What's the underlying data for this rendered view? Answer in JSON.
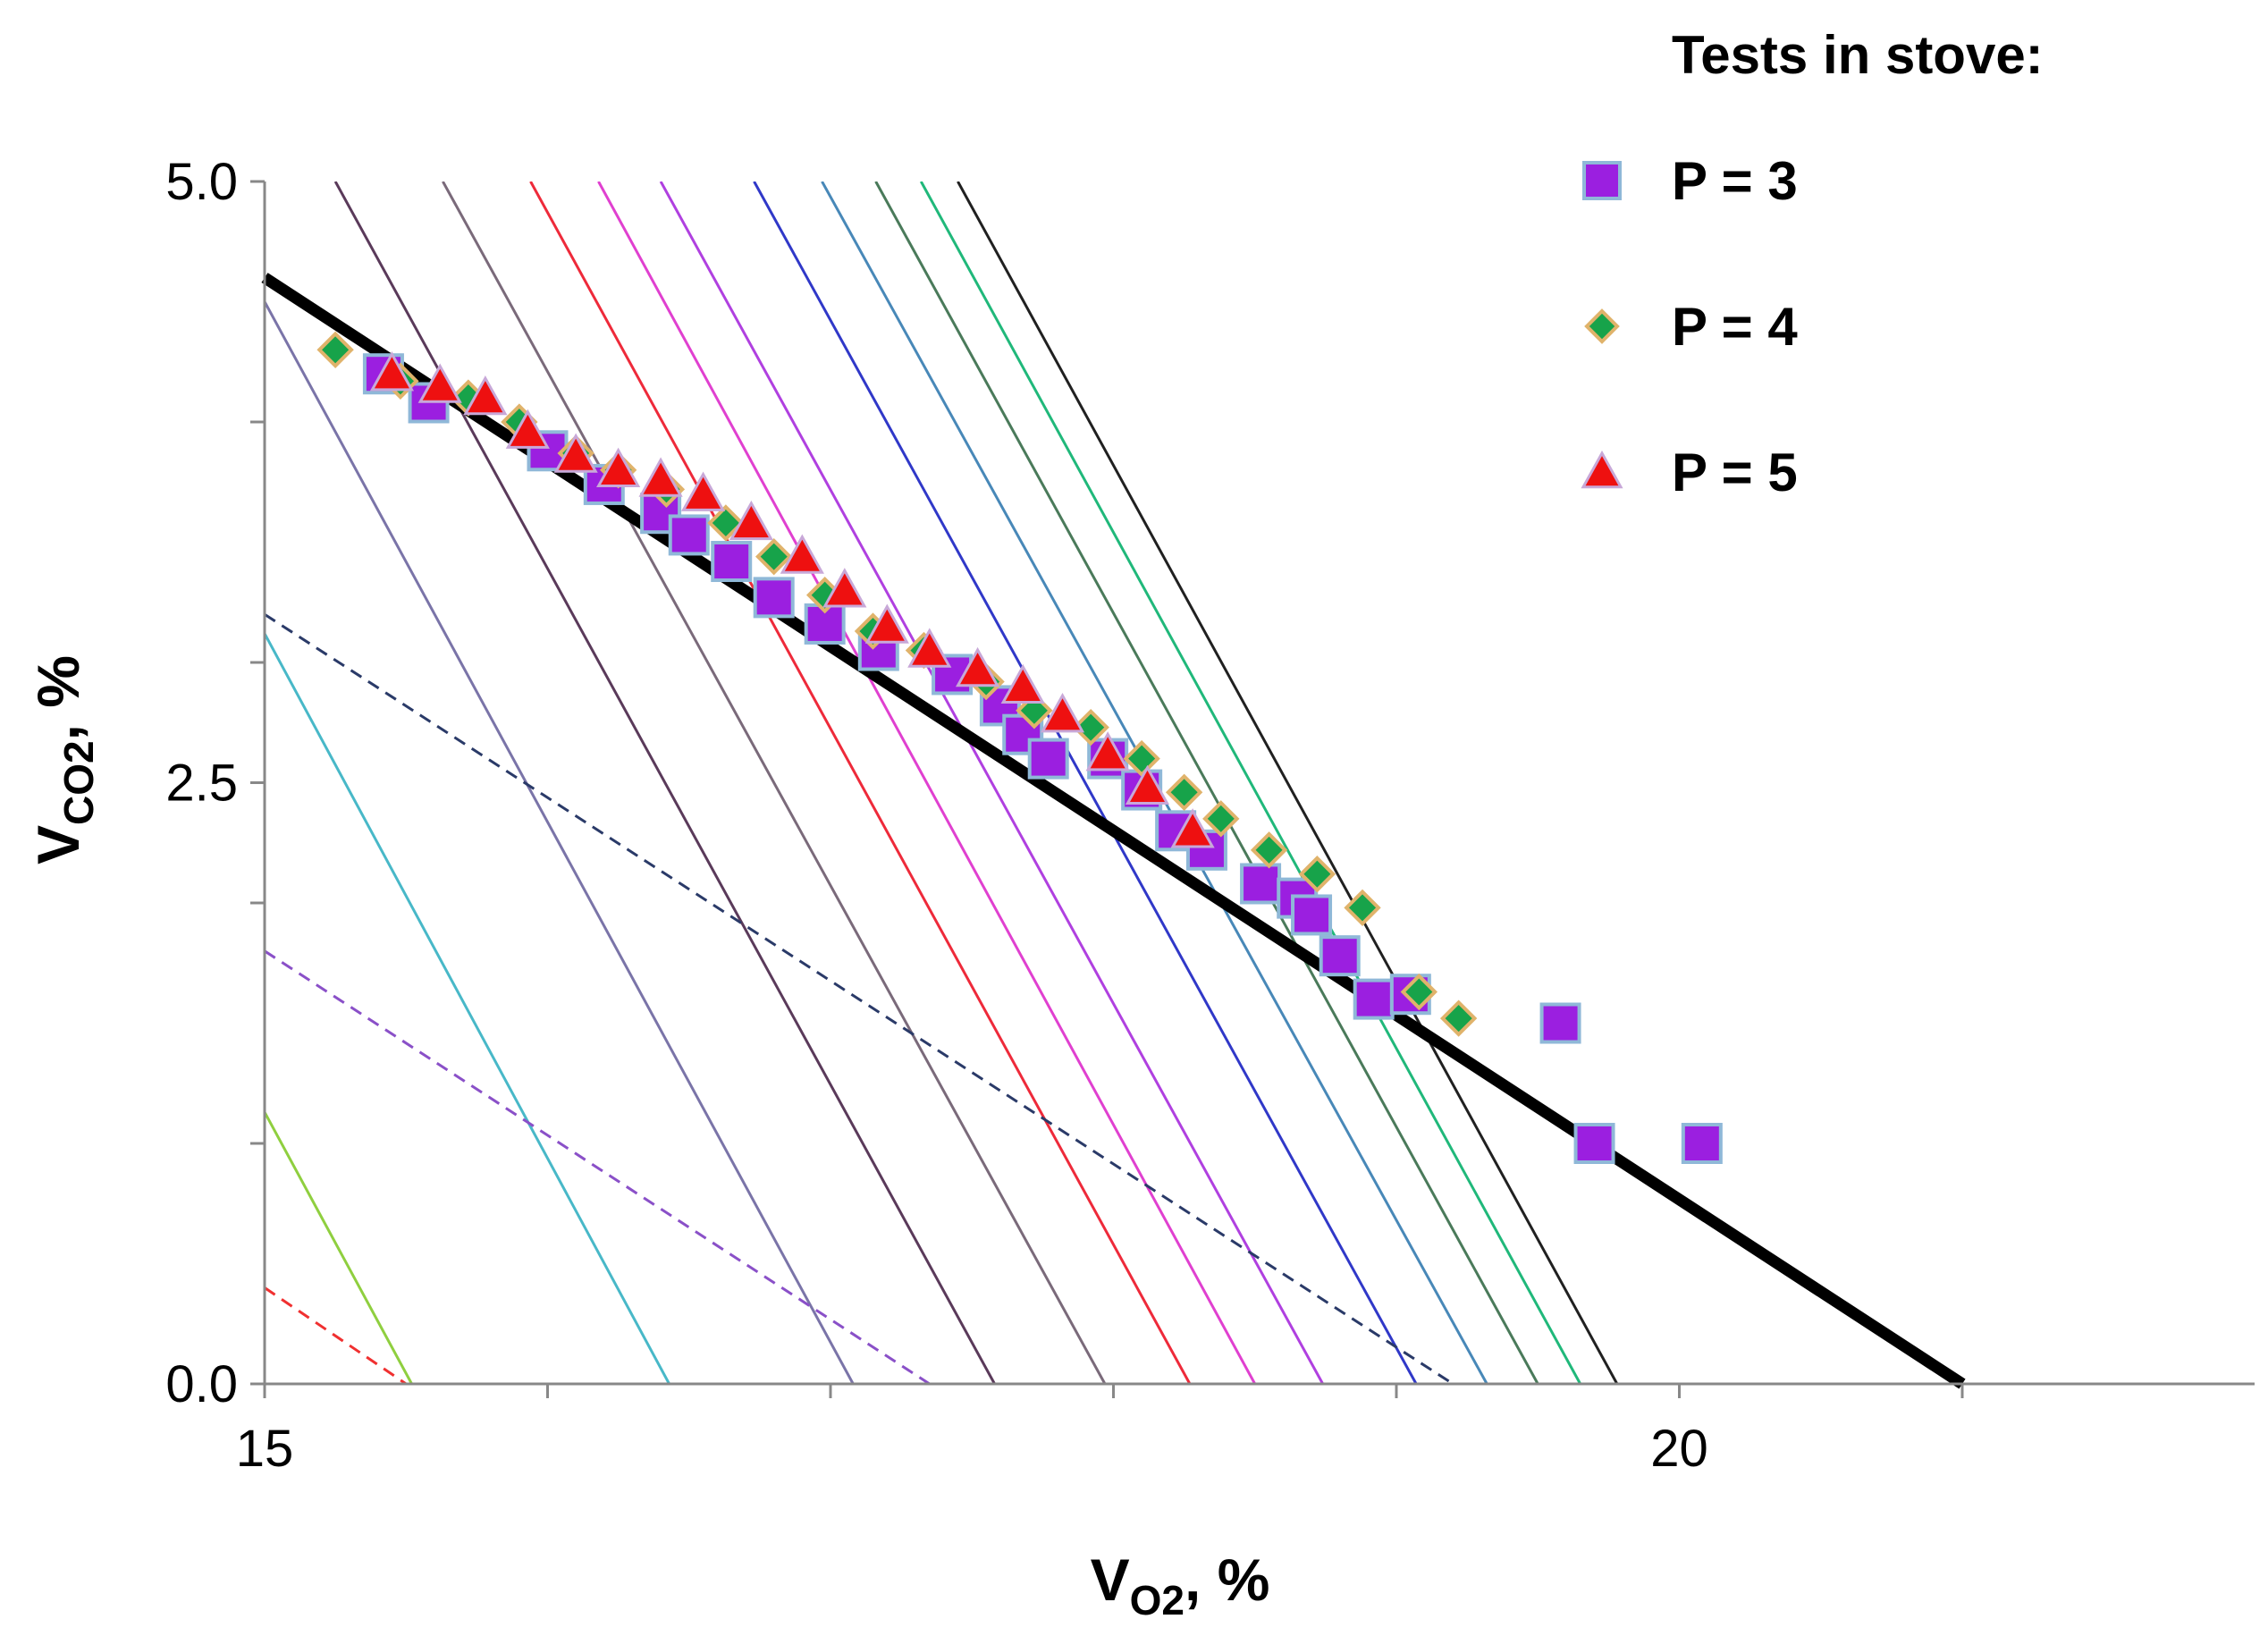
{
  "chart_data": {
    "type": "scatter",
    "x_axis": {
      "label_main": "V",
      "label_sub": "O2",
      "label_suffix": ", %",
      "range": [
        15,
        22
      ],
      "major_ticks": [
        15,
        20
      ],
      "tick_labels": [
        "15",
        "20"
      ],
      "minor_ticks": [
        16,
        17,
        18,
        19,
        21
      ]
    },
    "y_axis": {
      "label_main": "V",
      "label_sub": "CO2",
      "label_suffix": ", %",
      "range": [
        0,
        5
      ],
      "major_ticks": [
        0,
        2.5,
        5
      ],
      "tick_labels": [
        "0.0",
        "2.5",
        "5.0"
      ],
      "minor_ticks": [
        1,
        2,
        3,
        4
      ]
    },
    "grid": false,
    "legend": {
      "title": "Tests in stove:",
      "position": "top-right",
      "entries": [
        {
          "label": "P = 3",
          "marker": "square",
          "color": "#9b1fe0",
          "edge": "#8fb8d8"
        },
        {
          "label": "P = 4",
          "marker": "diamond",
          "color": "#17a34a",
          "edge": "#e0b36b"
        },
        {
          "label": "P = 5",
          "marker": "triangle",
          "color": "#ee1010",
          "edge": "#c8a8d8"
        }
      ]
    },
    "trend_line": {
      "x": [
        15,
        21
      ],
      "y": [
        4.6,
        0
      ],
      "color": "#000000"
    },
    "reference_lines": [
      {
        "x": [
          15,
          15.52
        ],
        "y": [
          1.13,
          0
        ],
        "color": "#8fcf3f",
        "dashed": false
      },
      {
        "x": [
          15,
          16.43
        ],
        "y": [
          3.12,
          0
        ],
        "color": "#48b8c8",
        "dashed": false
      },
      {
        "x": [
          15,
          17.08
        ],
        "y": [
          4.5,
          0
        ],
        "color": "#7a74a8",
        "dashed": false
      },
      {
        "x": [
          15.25,
          17.58
        ],
        "y": [
          5,
          0
        ],
        "color": "#5a3a5a",
        "dashed": false
      },
      {
        "x": [
          15.63,
          17.97
        ],
        "y": [
          5,
          0
        ],
        "color": "#7a6a7a",
        "dashed": false
      },
      {
        "x": [
          15.94,
          18.27
        ],
        "y": [
          5,
          0
        ],
        "color": "#ee2a3a",
        "dashed": false
      },
      {
        "x": [
          16.18,
          18.5
        ],
        "y": [
          5,
          0
        ],
        "color": "#e040d0",
        "dashed": false
      },
      {
        "x": [
          16.4,
          18.74
        ],
        "y": [
          5,
          0
        ],
        "color": "#b040e0",
        "dashed": false
      },
      {
        "x": [
          16.73,
          19.07
        ],
        "y": [
          5,
          0
        ],
        "color": "#3038c8",
        "dashed": false
      },
      {
        "x": [
          16.97,
          19.32
        ],
        "y": [
          5,
          0
        ],
        "color": "#4888b8",
        "dashed": false
      },
      {
        "x": [
          17.16,
          19.5
        ],
        "y": [
          5,
          0
        ],
        "color": "#4a7a5a",
        "dashed": false
      },
      {
        "x": [
          17.32,
          19.65
        ],
        "y": [
          5,
          0
        ],
        "color": "#20b87a",
        "dashed": false
      },
      {
        "x": [
          17.45,
          19.78
        ],
        "y": [
          5,
          0
        ],
        "color": "#202020",
        "dashed": false
      },
      {
        "x": [
          15,
          15.5
        ],
        "y": [
          0.4,
          0
        ],
        "color": "#f03030",
        "dashed": true
      },
      {
        "x": [
          15,
          17.35
        ],
        "y": [
          1.8,
          0
        ],
        "color": "#8a50c8",
        "dashed": true
      },
      {
        "x": [
          15,
          19.2
        ],
        "y": [
          3.2,
          0
        ],
        "color": "#2a3a68",
        "dashed": true
      }
    ],
    "series": [
      {
        "name": "P = 3",
        "marker": "square",
        "x": [
          15.42,
          15.58,
          16.0,
          16.2,
          16.4,
          16.5,
          16.65,
          16.8,
          16.98,
          17.17,
          17.43,
          17.6,
          17.68,
          17.77,
          17.98,
          18.1,
          18.22,
          18.33,
          18.52,
          18.65,
          18.7,
          18.8,
          18.92,
          19.05,
          19.58,
          19.7,
          20.08
        ],
        "y": [
          4.2,
          4.08,
          3.88,
          3.74,
          3.62,
          3.53,
          3.42,
          3.27,
          3.16,
          3.05,
          2.95,
          2.82,
          2.7,
          2.6,
          2.6,
          2.47,
          2.3,
          2.22,
          2.08,
          2.02,
          1.95,
          1.78,
          1.6,
          1.62,
          1.5,
          1.0,
          1.0
        ]
      },
      {
        "name": "P = 4",
        "marker": "diamond",
        "x": [
          15.25,
          15.48,
          15.72,
          15.9,
          16.1,
          16.25,
          16.42,
          16.63,
          16.8,
          16.98,
          17.15,
          17.33,
          17.55,
          17.72,
          17.92,
          18.1,
          18.25,
          18.38,
          18.55,
          18.72,
          18.88,
          19.08,
          19.22
        ],
        "y": [
          4.3,
          4.17,
          4.1,
          4.0,
          3.87,
          3.8,
          3.72,
          3.58,
          3.44,
          3.28,
          3.13,
          3.05,
          2.92,
          2.8,
          2.73,
          2.6,
          2.46,
          2.35,
          2.22,
          2.12,
          1.98,
          1.63,
          1.52
        ]
      },
      {
        "name": "P = 5",
        "marker": "triangle",
        "x": [
          15.45,
          15.62,
          15.78,
          15.93,
          16.1,
          16.25,
          16.4,
          16.55,
          16.72,
          16.9,
          17.05,
          17.2,
          17.35,
          17.52,
          17.68,
          17.82,
          17.98,
          18.12,
          18.28
        ],
        "y": [
          4.2,
          4.15,
          4.1,
          3.96,
          3.86,
          3.8,
          3.76,
          3.7,
          3.58,
          3.44,
          3.3,
          3.15,
          3.05,
          2.97,
          2.9,
          2.78,
          2.62,
          2.48,
          2.3
        ]
      }
    ]
  }
}
